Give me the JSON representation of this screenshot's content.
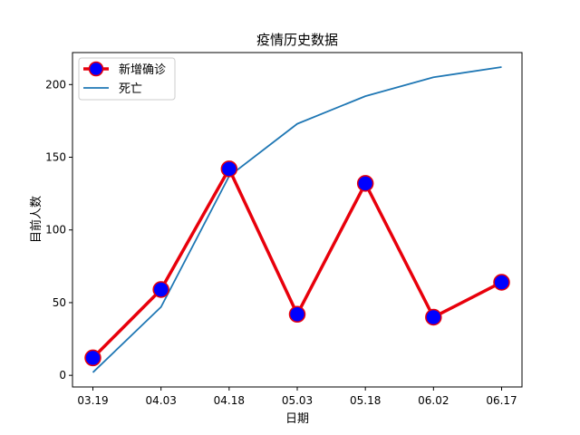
{
  "chart_data": {
    "type": "line",
    "title": "疫情历史数据",
    "xlabel": "日期",
    "ylabel": "目前人数",
    "categories": [
      "03.19",
      "04.03",
      "04.18",
      "05.03",
      "05.18",
      "06.02",
      "06.17"
    ],
    "xtick_labels": [
      "03.19",
      "04.03",
      "04.18",
      "05.03",
      "05.18",
      "06.02",
      "06.17"
    ],
    "yticks": [
      0,
      50,
      100,
      150,
      200
    ],
    "ytick_labels": [
      "0",
      "50",
      "100",
      "150",
      "200"
    ],
    "ylim": [
      -8,
      222
    ],
    "grid": false,
    "legend_position": "top-left",
    "series": [
      {
        "name": "新增确诊",
        "values": [
          12,
          59,
          142,
          42,
          132,
          40,
          64
        ],
        "line_color": "#e8000b",
        "marker_face": "#0000ff",
        "marker_edge": "#e8000b",
        "marker": "circle"
      },
      {
        "name": "死亡",
        "values": [
          2,
          47,
          137,
          173,
          192,
          205,
          212
        ],
        "line_color": "#1f77b4",
        "marker": "none"
      }
    ]
  }
}
